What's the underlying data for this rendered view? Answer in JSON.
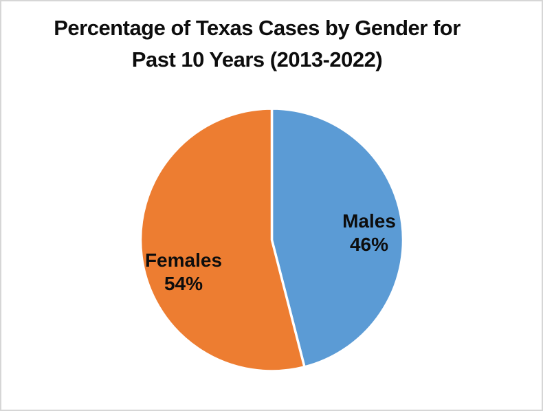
{
  "frame": {
    "background_color": "#ffffff",
    "border_color": "#d6d6d6"
  },
  "title": {
    "text": "Percentage of Texas Cases by Gender for Past 10 Years (2013-2022)",
    "line1": "Percentage of Texas Cases by Gender for",
    "line2": "Past 10 Years (2013-2022)"
  },
  "chart_data": {
    "type": "pie",
    "title": "Percentage of Texas Cases by Gender for Past 10 Years (2013-2022)",
    "categories": [
      "Males",
      "Females"
    ],
    "values": [
      46,
      54
    ],
    "unit": "%",
    "start_angle_deg": 0,
    "direction": "clockwise",
    "legend": "none",
    "labels_on_slices": true,
    "slice_border_color": "#ffffff",
    "slices": [
      {
        "name": "Males",
        "pct_label": "46%",
        "value": 46,
        "color": "#5B9BD5"
      },
      {
        "name": "Females",
        "pct_label": "54%",
        "value": 54,
        "color": "#ED7D31"
      }
    ]
  }
}
